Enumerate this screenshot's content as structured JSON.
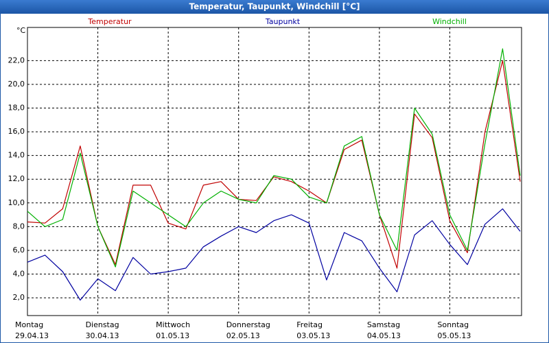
{
  "chart_data": {
    "type": "line",
    "title": "Temperatur, Taupunkt, Windchill [°C]",
    "y_unit": "°C",
    "x": [
      0,
      0.25,
      0.5,
      0.75,
      1,
      1.25,
      1.5,
      1.75,
      2,
      2.25,
      2.5,
      2.75,
      3,
      3.25,
      3.5,
      3.75,
      4,
      4.25,
      4.5,
      4.75,
      5,
      5.25,
      5.5,
      5.75,
      6,
      6.25,
      6.5,
      6.75,
      7
    ],
    "series": [
      {
        "name": "Temperatur",
        "color": "#c00000",
        "values": [
          8.4,
          8.3,
          9.5,
          14.8,
          8.0,
          4.8,
          11.5,
          11.5,
          8.3,
          7.8,
          11.5,
          11.8,
          10.3,
          10.2,
          12.2,
          11.8,
          11.0,
          10.0,
          14.5,
          15.3,
          9.0,
          4.5,
          17.5,
          15.5,
          8.5,
          5.8,
          16.0,
          22.0,
          11.8
        ]
      },
      {
        "name": "Taupunkt",
        "color": "#0000a0",
        "values": [
          5.0,
          5.6,
          4.2,
          1.8,
          3.6,
          2.6,
          5.4,
          4.0,
          4.2,
          4.5,
          6.3,
          7.2,
          8.0,
          7.5,
          8.5,
          9.0,
          8.3,
          3.5,
          7.5,
          6.8,
          4.5,
          2.5,
          7.3,
          8.5,
          6.5,
          4.8,
          8.2,
          9.5,
          7.6
        ]
      },
      {
        "name": "Windchill",
        "color": "#00b000",
        "values": [
          9.3,
          8.0,
          8.6,
          14.2,
          8.0,
          4.6,
          11.0,
          10.0,
          9.0,
          8.0,
          10.0,
          11.0,
          10.3,
          10.0,
          12.3,
          12.0,
          10.5,
          10.0,
          14.8,
          15.6,
          9.0,
          6.0,
          18.0,
          15.8,
          9.0,
          6.0,
          15.0,
          23.0,
          12.3
        ]
      }
    ],
    "xlim": [
      0,
      7
    ],
    "xticks": [
      {
        "value": 0,
        "label": "Montag",
        "sublabel": "29.04.13"
      },
      {
        "value": 1,
        "label": "Dienstag",
        "sublabel": "30.04.13"
      },
      {
        "value": 2,
        "label": "Mittwoch",
        "sublabel": "01.05.13"
      },
      {
        "value": 3,
        "label": "Donnerstag",
        "sublabel": "02.05.13"
      },
      {
        "value": 4,
        "label": "Freitag",
        "sublabel": "03.05.13"
      },
      {
        "value": 5,
        "label": "Samstag",
        "sublabel": "04.05.13"
      },
      {
        "value": 6,
        "label": "Sonntag",
        "sublabel": "05.05.13"
      }
    ],
    "ylim": [
      0.5,
      24.8
    ],
    "yticks": [
      {
        "value": 2,
        "label": "2,0"
      },
      {
        "value": 4,
        "label": "4,0"
      },
      {
        "value": 6,
        "label": "6,0"
      },
      {
        "value": 8,
        "label": "8,0"
      },
      {
        "value": 10,
        "label": "10,0"
      },
      {
        "value": 12,
        "label": "12,0"
      },
      {
        "value": 14,
        "label": "14,0"
      },
      {
        "value": 16,
        "label": "16,0"
      },
      {
        "value": 18,
        "label": "18,0"
      },
      {
        "value": 20,
        "label": "20,0"
      },
      {
        "value": 22,
        "label": "22,0"
      }
    ],
    "grid": true
  }
}
